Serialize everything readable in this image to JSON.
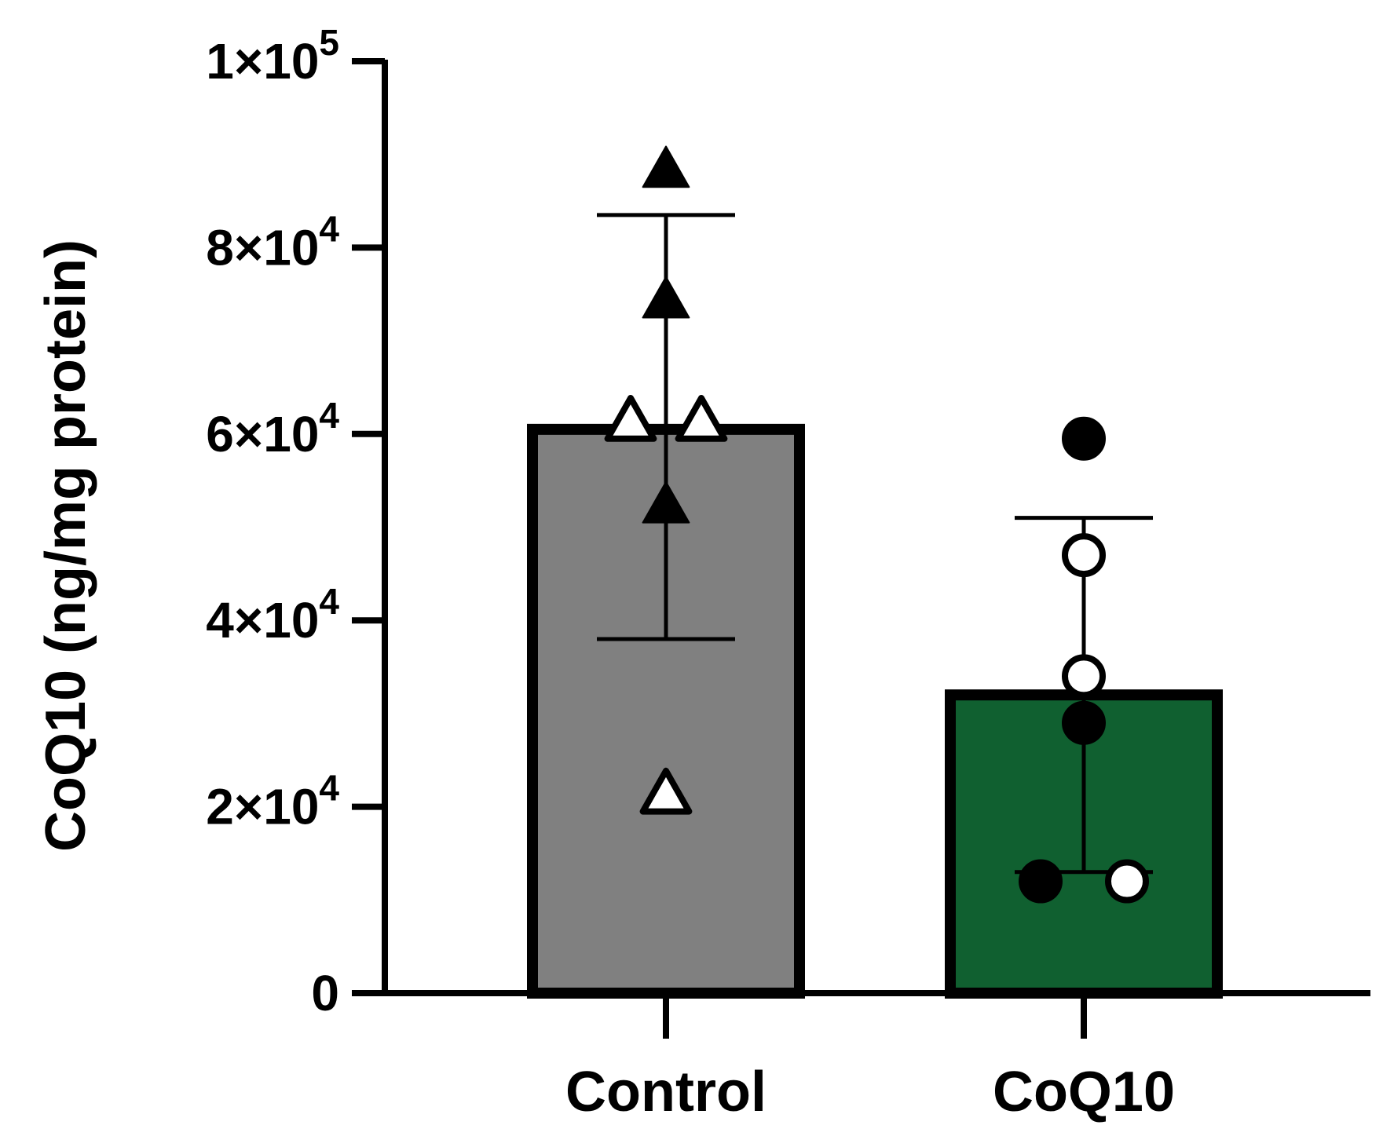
{
  "chart_data": {
    "type": "bar",
    "ylabel": "CoQ10 (ng/mg protein)",
    "xlabel": "",
    "ylim": [
      0,
      100000
    ],
    "yticks": [
      {
        "value": 0,
        "mantissa": "0",
        "exponent": ""
      },
      {
        "value": 20000,
        "mantissa": "2×10",
        "exponent": "4"
      },
      {
        "value": 40000,
        "mantissa": "4×10",
        "exponent": "4"
      },
      {
        "value": 60000,
        "mantissa": "6×10",
        "exponent": "4"
      },
      {
        "value": 80000,
        "mantissa": "8×10",
        "exponent": "4"
      },
      {
        "value": 100000,
        "mantissa": "1×10",
        "exponent": "5"
      }
    ],
    "categories": [
      "Control",
      "CoQ10"
    ],
    "values": [
      60500,
      32000
    ],
    "error_bars": [
      {
        "low": 38000,
        "high": 83500
      },
      {
        "low": 13000,
        "high": 51000
      }
    ],
    "colors": [
      "#808080",
      "#106030"
    ],
    "grid": false,
    "legend": "none",
    "points": [
      [
        {
          "y": 88500,
          "marker": "triangle",
          "filled": true,
          "offset": 0
        },
        {
          "y": 74500,
          "marker": "triangle",
          "filled": true,
          "offset": 0
        },
        {
          "y": 61500,
          "marker": "triangle",
          "filled": false,
          "offset": -0.45
        },
        {
          "y": 61500,
          "marker": "triangle",
          "filled": false,
          "offset": 0.45
        },
        {
          "y": 52500,
          "marker": "triangle",
          "filled": true,
          "offset": 0
        },
        {
          "y": 21500,
          "marker": "triangle",
          "filled": false,
          "offset": 0
        }
      ],
      [
        {
          "y": 59500,
          "marker": "circle",
          "filled": true,
          "offset": 0
        },
        {
          "y": 47000,
          "marker": "circle",
          "filled": false,
          "offset": 0
        },
        {
          "y": 34000,
          "marker": "circle",
          "filled": false,
          "offset": 0
        },
        {
          "y": 29000,
          "marker": "circle",
          "filled": true,
          "offset": 0
        },
        {
          "y": 12000,
          "marker": "circle",
          "filled": true,
          "offset": -0.55
        },
        {
          "y": 12000,
          "marker": "circle",
          "filled": false,
          "offset": 0.55
        }
      ]
    ]
  }
}
